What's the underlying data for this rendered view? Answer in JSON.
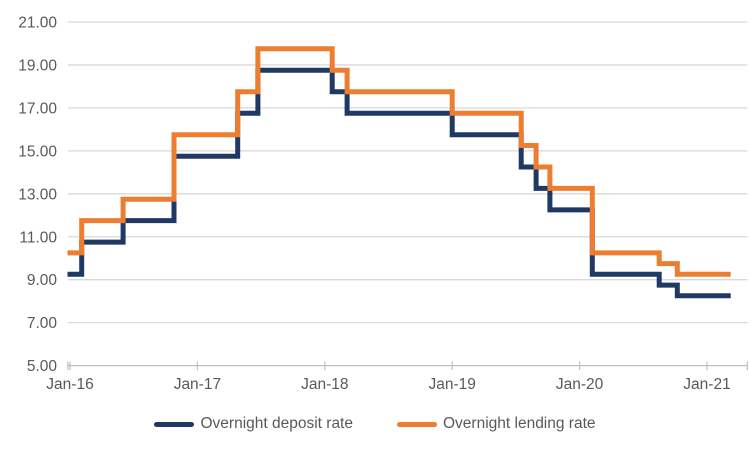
{
  "chart_data": {
    "type": "line",
    "subtype": "step",
    "title": "",
    "xlabel": "",
    "ylabel": "",
    "x_tick_labels": [
      "Jan-16",
      "Jan-17",
      "Jan-18",
      "Jan-19",
      "Jan-20",
      "Jan-21"
    ],
    "x_tick_months": [
      0,
      12,
      24,
      36,
      48,
      60
    ],
    "axis_start_month": -0.2,
    "axis_end_month": 63.8,
    "data_end_month": 62,
    "y_tick_labels": [
      "21.00",
      "19.00",
      "17.00",
      "15.00",
      "13.00",
      "11.00",
      "9.00",
      "7.00",
      "5.00"
    ],
    "y_tick_values": [
      21,
      19,
      17,
      15,
      13,
      11,
      9,
      7,
      5
    ],
    "ylim": [
      5,
      21
    ],
    "grid": "horizontal",
    "legend_position": "bottom",
    "change_months": [
      0,
      1.1,
      5,
      9.8,
      15.8,
      17.7,
      24.7,
      26.1,
      36,
      42.5,
      43.9,
      45.2,
      49.2,
      55.5,
      57.2
    ],
    "series": [
      {
        "name": "Overnight deposit rate",
        "color": "#1f3864",
        "values": [
          9.25,
          10.75,
          11.75,
          14.75,
          16.75,
          18.75,
          17.75,
          16.75,
          15.75,
          14.25,
          13.25,
          12.25,
          9.25,
          8.75,
          8.25
        ]
      },
      {
        "name": "Overnight lending rate",
        "color": "#ed7d31",
        "values": [
          10.25,
          11.75,
          12.75,
          15.75,
          17.75,
          19.75,
          18.75,
          17.75,
          16.75,
          15.25,
          14.25,
          13.25,
          10.25,
          9.75,
          9.25
        ]
      }
    ]
  },
  "legend": {
    "items": [
      {
        "label": "Overnight deposit rate",
        "color": "#1f3864"
      },
      {
        "label": "Overnight lending rate",
        "color": "#ed7d31"
      }
    ]
  },
  "style": {
    "background": "#ffffff",
    "axis_text_color": "#595959",
    "gridline_color": "#d9d9d9",
    "axis_line_color": "#bfbfbf",
    "line_width": 5
  }
}
